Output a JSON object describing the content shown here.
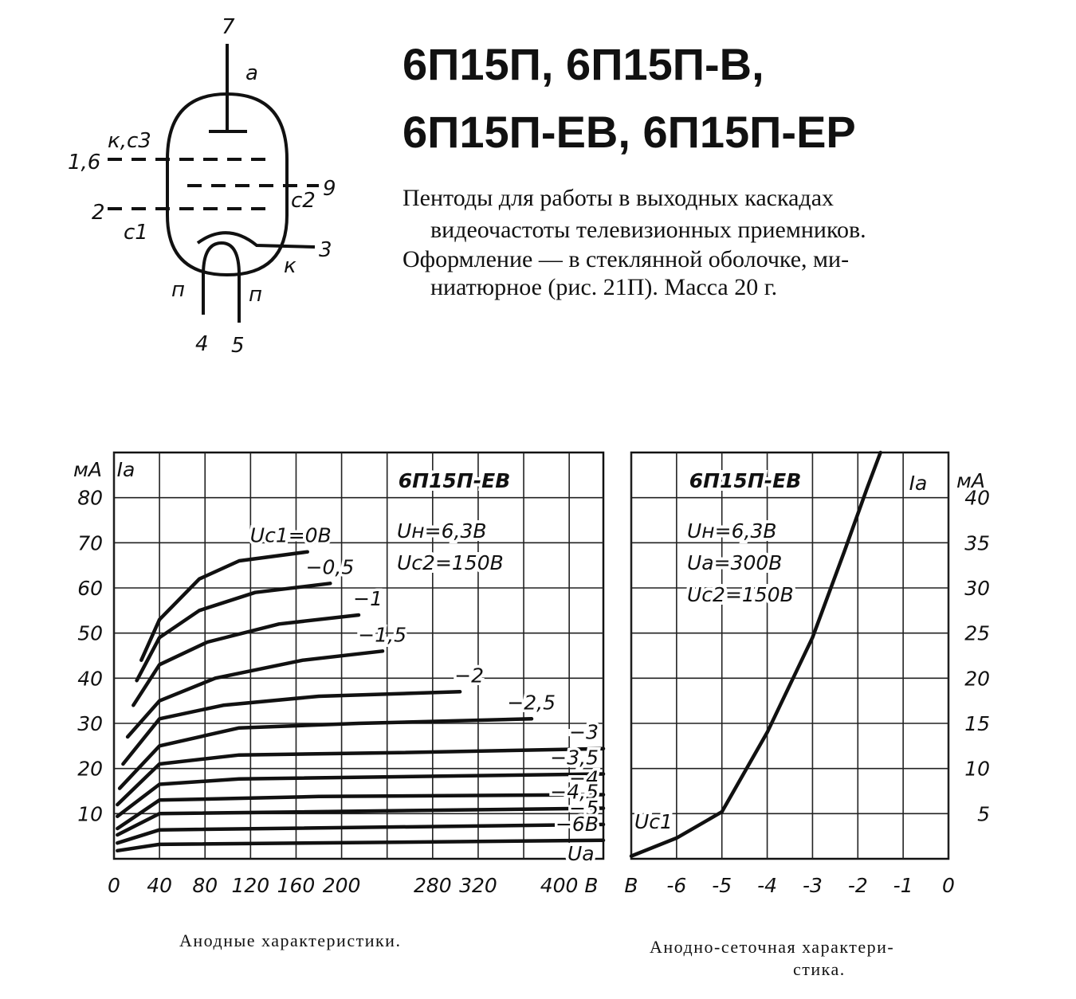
{
  "header": {
    "title_lines": [
      "6П15П,  6П15П-В,",
      "6П15П-ЕВ,  6П15П-ЕР"
    ],
    "description": [
      "Пентоды для работы в выходных каскадах",
      "видеочастоты телевизионных приемников.",
      "Оформление — в стеклянной оболочке, ми-",
      "ниатюрное (рис. 21П). Масса 20 г."
    ]
  },
  "diagram": {
    "pins": [
      "7",
      "1,6",
      "9",
      "2",
      "3",
      "4",
      "5"
    ],
    "electrodes": [
      "а",
      "к,с3",
      "с2",
      "с1",
      "к",
      "п",
      "п"
    ]
  },
  "chart_data": [
    {
      "type": "line",
      "title": "6П15П-ЕВ",
      "notes": [
        "Uн=6,3В",
        "Uс2=150В"
      ],
      "y_label": "Iа",
      "y_unit": "мА",
      "x_label": "Uа",
      "xlim": [
        0,
        430
      ],
      "ylim": [
        0,
        90
      ],
      "xticks": [
        0,
        40,
        80,
        120,
        160,
        200,
        280,
        320,
        {
          "value": 400,
          "label": "400 В"
        }
      ],
      "xminor": [
        240,
        360
      ],
      "yticks": [
        10,
        20,
        30,
        40,
        50,
        60,
        70,
        80
      ],
      "grid": true,
      "y_axis_side": "left",
      "series": [
        {
          "name": "Uс1=0В",
          "color": "#111",
          "x": [
            24,
            40,
            75,
            110,
            170
          ],
          "values": [
            44,
            53,
            62,
            66,
            68
          ]
        },
        {
          "name": "−0,5",
          "color": "#111",
          "x": [
            20,
            40,
            75,
            124,
            190
          ],
          "values": [
            39.5,
            49,
            55,
            59,
            61
          ]
        },
        {
          "name": "−1",
          "color": "#111",
          "x": [
            17,
            40,
            82,
            145,
            215
          ],
          "values": [
            34,
            43,
            48,
            52,
            54
          ]
        },
        {
          "name": "−1,5",
          "color": "#111",
          "x": [
            12,
            40,
            89,
            166,
            236
          ],
          "values": [
            27,
            35,
            40,
            44,
            46
          ]
        },
        {
          "name": "−2",
          "color": "#111",
          "x": [
            8,
            40,
            96,
            180,
            304
          ],
          "values": [
            21,
            31,
            34,
            36,
            37
          ]
        },
        {
          "name": "−2,5",
          "color": "#111",
          "x": [
            5,
            40,
            110,
            215,
            367
          ],
          "values": [
            15.6,
            25,
            29,
            30,
            31
          ]
        },
        {
          "name": "−3",
          "color": "#111",
          "x": [
            3,
            40,
            110,
            250,
            430
          ],
          "values": [
            12,
            21,
            23,
            23.5,
            24.4
          ]
        },
        {
          "name": "−3,5",
          "color": "#111",
          "x": [
            3,
            40,
            110,
            430
          ],
          "values": [
            9.4,
            16.5,
            17.7,
            18.8
          ]
        },
        {
          "name": "−4",
          "color": "#111",
          "x": [
            3,
            40,
            180,
            430
          ],
          "values": [
            6.7,
            13,
            13.8,
            14.2
          ]
        },
        {
          "name": "−4,5",
          "color": "#111",
          "x": [
            3,
            40,
            430
          ],
          "values": [
            5.3,
            10,
            11.2
          ]
        },
        {
          "name": "−5",
          "color": "#111",
          "x": [
            3,
            40,
            430
          ],
          "values": [
            3.5,
            6.4,
            7.6
          ]
        },
        {
          "name": "−6В",
          "color": "#111",
          "x": [
            3,
            40,
            430
          ],
          "values": [
            1.8,
            3.2,
            4.1
          ]
        }
      ]
    },
    {
      "type": "line",
      "title": "6П15П-ЕВ",
      "notes": [
        "Uн=6,3В",
        "Uа=300В",
        "Uс2=150В"
      ],
      "y_label": "Iа",
      "y_unit": "мА",
      "x_label": "Uс1",
      "xlim": [
        -7,
        0
      ],
      "ylim": [
        0,
        45
      ],
      "xticks": [
        {
          "value": -7,
          "label": "В"
        },
        -6,
        -5,
        -4,
        -3,
        -2,
        -1,
        0
      ],
      "yticks": [
        5,
        10,
        15,
        20,
        25,
        30,
        35,
        40
      ],
      "grid": true,
      "y_axis_side": "right",
      "series": [
        {
          "color": "#111",
          "x": [
            -7,
            -6,
            -5,
            -4,
            -3,
            -2.3,
            -1.8,
            -1.5
          ],
          "values": [
            0.3,
            2.3,
            5.2,
            14,
            24.5,
            34,
            41,
            45
          ]
        }
      ]
    }
  ],
  "captions": [
    "Анодные характеристики.",
    "Анодно-сеточная характери-",
    "стика."
  ]
}
